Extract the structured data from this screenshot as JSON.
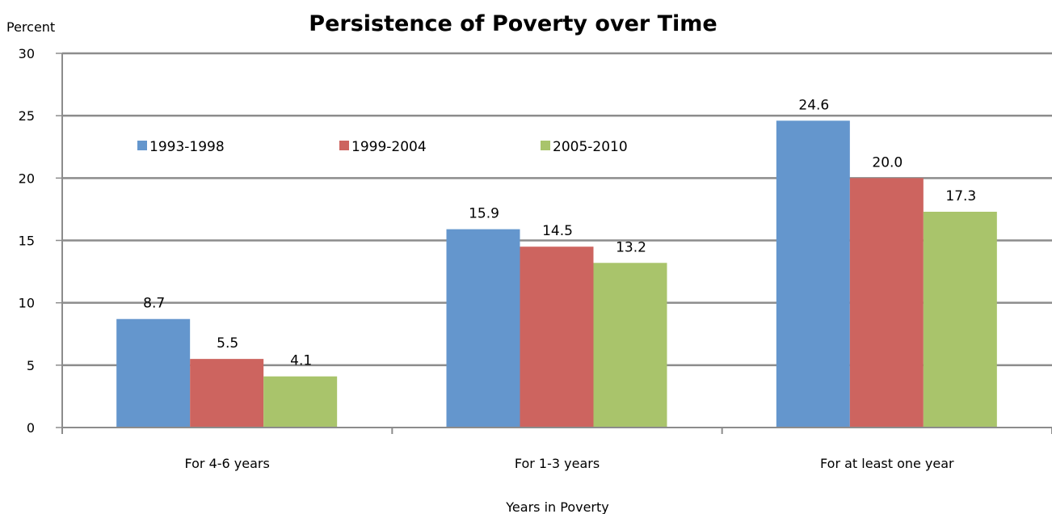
{
  "chart_data": {
    "type": "bar",
    "title": "Persistence of Poverty over Time",
    "ylabel": "Percent",
    "xlabel": "Years in Poverty",
    "categories": [
      "For 4-6 years",
      "For 1-3 years",
      "For at least one year"
    ],
    "series": [
      {
        "name": "1993-1998",
        "values": [
          8.7,
          15.9,
          24.6
        ],
        "color": "#6496cd"
      },
      {
        "name": "1999-2004",
        "values": [
          5.5,
          14.5,
          20.0
        ],
        "color": "#cd645f"
      },
      {
        "name": "2005-2010",
        "values": [
          4.1,
          13.2,
          17.3
        ],
        "color": "#a9c46b"
      }
    ],
    "ylim": [
      0,
      30
    ],
    "yticks": [
      0,
      5,
      10,
      15,
      20,
      25,
      30
    ],
    "grid": true,
    "legend": "top-left, inside plot",
    "value_format": "1 decimal"
  }
}
